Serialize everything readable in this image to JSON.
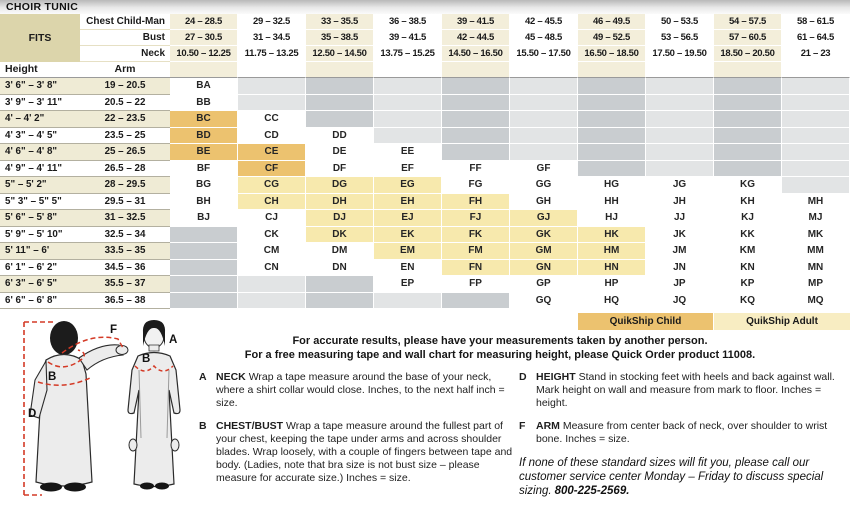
{
  "title": "CHOIR TUNIC",
  "fits": {
    "label": "FITS",
    "rows": [
      {
        "label": "Chest Child-Man",
        "values": [
          "24 – 28.5",
          "29 – 32.5",
          "33 – 35.5",
          "36 – 38.5",
          "39 – 41.5",
          "42 – 45.5",
          "46 – 49.5",
          "50 – 53.5",
          "54 – 57.5",
          "58 – 61.5"
        ]
      },
      {
        "label": "Bust",
        "values": [
          "27 – 30.5",
          "31 – 34.5",
          "35 – 38.5",
          "39 – 41.5",
          "42 – 44.5",
          "45 – 48.5",
          "49 – 52.5",
          "53 – 56.5",
          "57 – 60.5",
          "61 – 64.5"
        ]
      },
      {
        "label": "Neck",
        "values": [
          "10.50 – 12.25",
          "11.75 – 13.25",
          "12.50 – 14.50",
          "13.75 – 15.25",
          "14.50 – 16.50",
          "15.50 – 17.50",
          "16.50 – 18.50",
          "17.50 – 19.50",
          "18.50 – 20.50",
          "21 – 23"
        ]
      }
    ]
  },
  "size_table": {
    "height_header": "Height",
    "arm_header": "Arm",
    "rows": [
      {
        "height": "3' 6\" – 3' 8\"",
        "arm": "19 – 20.5",
        "cells": [
          "BA",
          "",
          "",
          "",
          "",
          "",
          "",
          "",
          "",
          ""
        ]
      },
      {
        "height": "3' 9\" – 3' 11\"",
        "arm": "20.5 – 22",
        "cells": [
          "BB",
          "",
          "",
          "",
          "",
          "",
          "",
          "",
          "",
          ""
        ]
      },
      {
        "height": "4' – 4' 2\"",
        "arm": "22 – 23.5",
        "cells": [
          "BC|c",
          "CC",
          "",
          "",
          "",
          "",
          "",
          "",
          "",
          ""
        ]
      },
      {
        "height": "4' 3\" – 4' 5\"",
        "arm": "23.5 – 25",
        "cells": [
          "BD|c",
          "CD",
          "DD",
          "",
          "",
          "",
          "",
          "",
          "",
          ""
        ]
      },
      {
        "height": "4' 6\" – 4' 8\"",
        "arm": "25 – 26.5",
        "cells": [
          "BE|c",
          "CE|c",
          "DE",
          "EE",
          "",
          "",
          "",
          "",
          "",
          ""
        ]
      },
      {
        "height": "4' 9\" – 4' 11\"",
        "arm": "26.5 – 28",
        "cells": [
          "BF",
          "CF|c",
          "DF",
          "EF",
          "FF",
          "GF",
          "",
          "",
          "",
          ""
        ]
      },
      {
        "height": "5\" – 5' 2\"",
        "arm": "28 – 29.5",
        "cells": [
          "BG",
          "CG|a",
          "DG|a",
          "EG|a",
          "FG",
          "GG",
          "HG",
          "JG",
          "KG",
          ""
        ]
      },
      {
        "height": "5\" 3\" – 5\" 5\"",
        "arm": "29.5 – 31",
        "cells": [
          "BH",
          "CH|a",
          "DH|a",
          "EH|a",
          "FH|a",
          "GH",
          "HH",
          "JH",
          "KH",
          "MH"
        ]
      },
      {
        "height": "5' 6\" – 5' 8\"",
        "arm": "31 – 32.5",
        "cells": [
          "BJ",
          "CJ",
          "DJ|a",
          "EJ|a",
          "FJ|a",
          "GJ|a",
          "HJ",
          "JJ",
          "KJ",
          "MJ"
        ]
      },
      {
        "height": "5' 9\" – 5' 10\"",
        "arm": "32.5 – 34",
        "cells": [
          "",
          "CK",
          "DK|a",
          "EK|a",
          "FK|a",
          "GK|a",
          "HK|a",
          "JK",
          "KK",
          "MK"
        ]
      },
      {
        "height": "5' 11\" – 6'",
        "arm": "33.5 – 35",
        "cells": [
          "",
          "CM",
          "DM",
          "EM|a",
          "FM|a",
          "GM|a",
          "HM|a",
          "JM",
          "KM",
          "MM"
        ]
      },
      {
        "height": "6' 1\" – 6' 2\"",
        "arm": "34.5 – 36",
        "cells": [
          "",
          "CN",
          "DN",
          "EN",
          "FN|a",
          "GN|a",
          "HN|a",
          "JN",
          "KN",
          "MN"
        ]
      },
      {
        "height": "6' 3\" – 6' 5\"",
        "arm": "35.5 – 37",
        "cells": [
          "",
          "",
          "",
          "EP",
          "FP",
          "GP",
          "HP",
          "JP",
          "KP",
          "MP"
        ]
      },
      {
        "height": "6' 6\" – 6' 8\"",
        "arm": "36.5 – 38",
        "cells": [
          "",
          "",
          "",
          "",
          "",
          "GQ",
          "HQ",
          "JQ",
          "KQ",
          "MQ"
        ]
      }
    ]
  },
  "legend": {
    "child": "QuikShip Child",
    "adult": "QuikShip Adult"
  },
  "note": {
    "line1": "For accurate results, please have your measurements taken by another person.",
    "line2": "For a free measuring tape and wall chart for measuring height, please Quick Order product 11008."
  },
  "instructions": [
    {
      "letter": "A",
      "term": "NECK",
      "text": "Wrap a tape measure around the base of your neck, where a shirt collar would close. Inches, to the next half inch = size."
    },
    {
      "letter": "B",
      "term": "CHEST/BUST",
      "text": "Wrap a tape measure around the fullest part of your chest, keeping the tape under arms and across shoulder blades. Wrap loosely, with a couple of fingers between tape and body. (Ladies, note that bra size is not bust size – please measure for accurate size.) Inches = size."
    },
    {
      "letter": "D",
      "term": "HEIGHT",
      "text": "Stand in stocking feet with heels and back against wall. Mark height on wall and measure from mark to floor. Inches = height."
    },
    {
      "letter": "F",
      "term": "ARM",
      "text": "Measure from center back of neck, over shoulder to wrist bone. Inches = size."
    }
  ],
  "special_note": {
    "text": "If none of these standard sizes will fit you, please call our customer service center Monday – Friday to discuss special sizing.",
    "phone": "800-225-2569."
  },
  "figure": {
    "labels": {
      "d": "D",
      "b_back": "B",
      "f": "F",
      "b_front": "B",
      "a": "A"
    }
  },
  "colors": {
    "quikship_child": "#ecc26f",
    "quikship_adult": "#f7e9ad",
    "header_tan": "#f3eeda",
    "row_tan": "#efebd5",
    "fits_tan": "#dcd5ab",
    "empty_dark": "#c9cdd0",
    "empty_light": "#e2e4e5",
    "measure_red": "#d43a26"
  }
}
